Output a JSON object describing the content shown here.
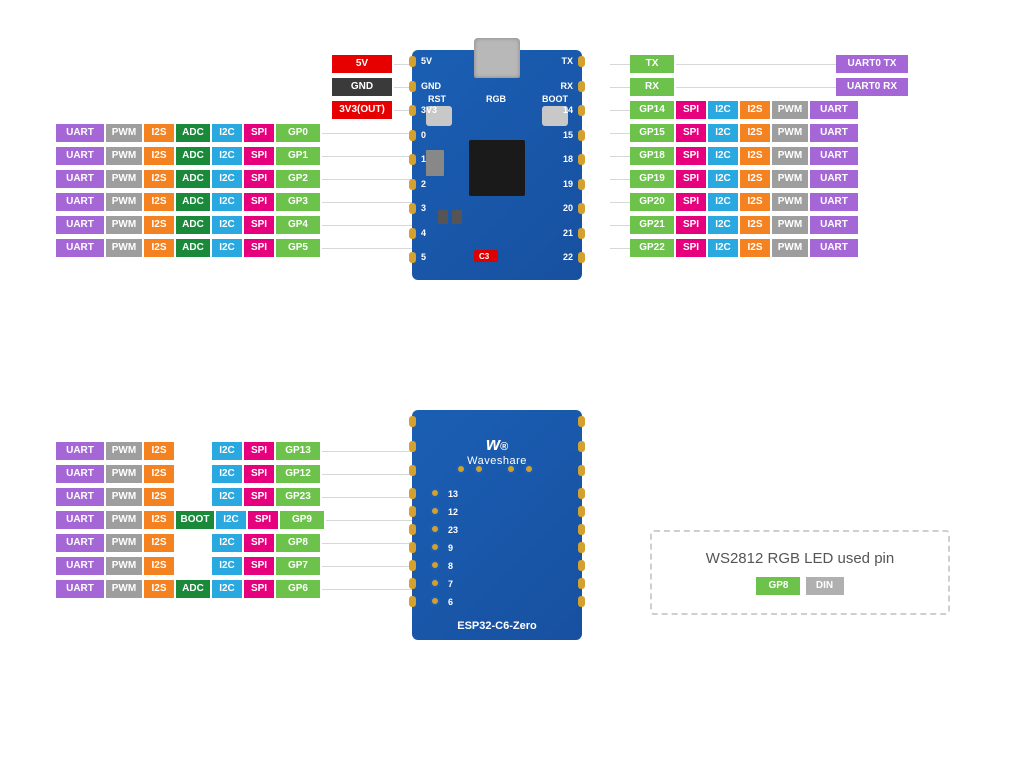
{
  "colors": {
    "uart": "#a566d6",
    "pwm": "#9e9e9e",
    "i2s": "#f58220",
    "adc": "#1a8a3a",
    "i2c": "#2aa8e0",
    "spi": "#e6007e",
    "gp": "#6cc24a",
    "gnd": "#3a3a3a",
    "v5": "#e60000",
    "v33": "#e60000",
    "boot": "#1a8a3a",
    "din": "#b0b0b0",
    "boardBg": "#1a5fb4"
  },
  "widths": {
    "uart": 48,
    "pwm": 36,
    "i2s": 30,
    "adc": 34,
    "i2c": 30,
    "spi": 30,
    "gp": 44,
    "power": 60,
    "boot": 38,
    "uart0": 72,
    "din": 38
  },
  "top": {
    "powerLeft": [
      {
        "label": "5V",
        "colorKey": "v5"
      },
      {
        "label": "GND",
        "colorKey": "gnd"
      },
      {
        "label": "3V3(OUT)",
        "colorKey": "v33"
      }
    ],
    "leftRows": [
      {
        "gp": "GP0"
      },
      {
        "gp": "GP1"
      },
      {
        "gp": "GP2"
      },
      {
        "gp": "GP3"
      },
      {
        "gp": "GP4"
      },
      {
        "gp": "GP5"
      }
    ],
    "rightTxRx": [
      {
        "gp": "TX",
        "uart0": "UART0 TX"
      },
      {
        "gp": "RX",
        "uart0": "UART0 RX"
      }
    ],
    "rightRows": [
      {
        "gp": "GP14"
      },
      {
        "gp": "GP15"
      },
      {
        "gp": "GP18"
      },
      {
        "gp": "GP19"
      },
      {
        "gp": "GP20"
      },
      {
        "gp": "GP21"
      },
      {
        "gp": "GP22"
      }
    ],
    "boardSilk": {
      "leftPins": [
        "5V",
        "GND",
        "3V3",
        "0",
        "1",
        "2",
        "3",
        "4",
        "5"
      ],
      "rightPins": [
        "TX",
        "RX",
        "14",
        "15",
        "18",
        "19",
        "20",
        "21",
        "22"
      ],
      "rst": "RST",
      "rgb": "RGB",
      "boot": "BOOT",
      "c3": "C3"
    }
  },
  "bottom": {
    "leftRows": [
      {
        "gp": "GP13",
        "extra": null
      },
      {
        "gp": "GP12",
        "extra": null
      },
      {
        "gp": "GP23",
        "extra": null
      },
      {
        "gp": "GP9",
        "extra": "BOOT"
      },
      {
        "gp": "GP8",
        "extra": null
      },
      {
        "gp": "GP7",
        "extra": null
      },
      {
        "gp": "GP6",
        "extra": "ADC"
      }
    ],
    "boardSilk": {
      "pins": [
        "13",
        "12",
        "23",
        "9",
        "8",
        "7",
        "6"
      ],
      "brand": "Waveshare",
      "model": "ESP32-C6-Zero"
    }
  },
  "legend": {
    "title": "WS2812 RGB LED used pin",
    "gp": "GP8",
    "din": "DIN"
  },
  "funcLabels": {
    "uart": "UART",
    "pwm": "PWM",
    "i2s": "I2S",
    "adc": "ADC",
    "i2c": "I2C",
    "spi": "SPI"
  }
}
